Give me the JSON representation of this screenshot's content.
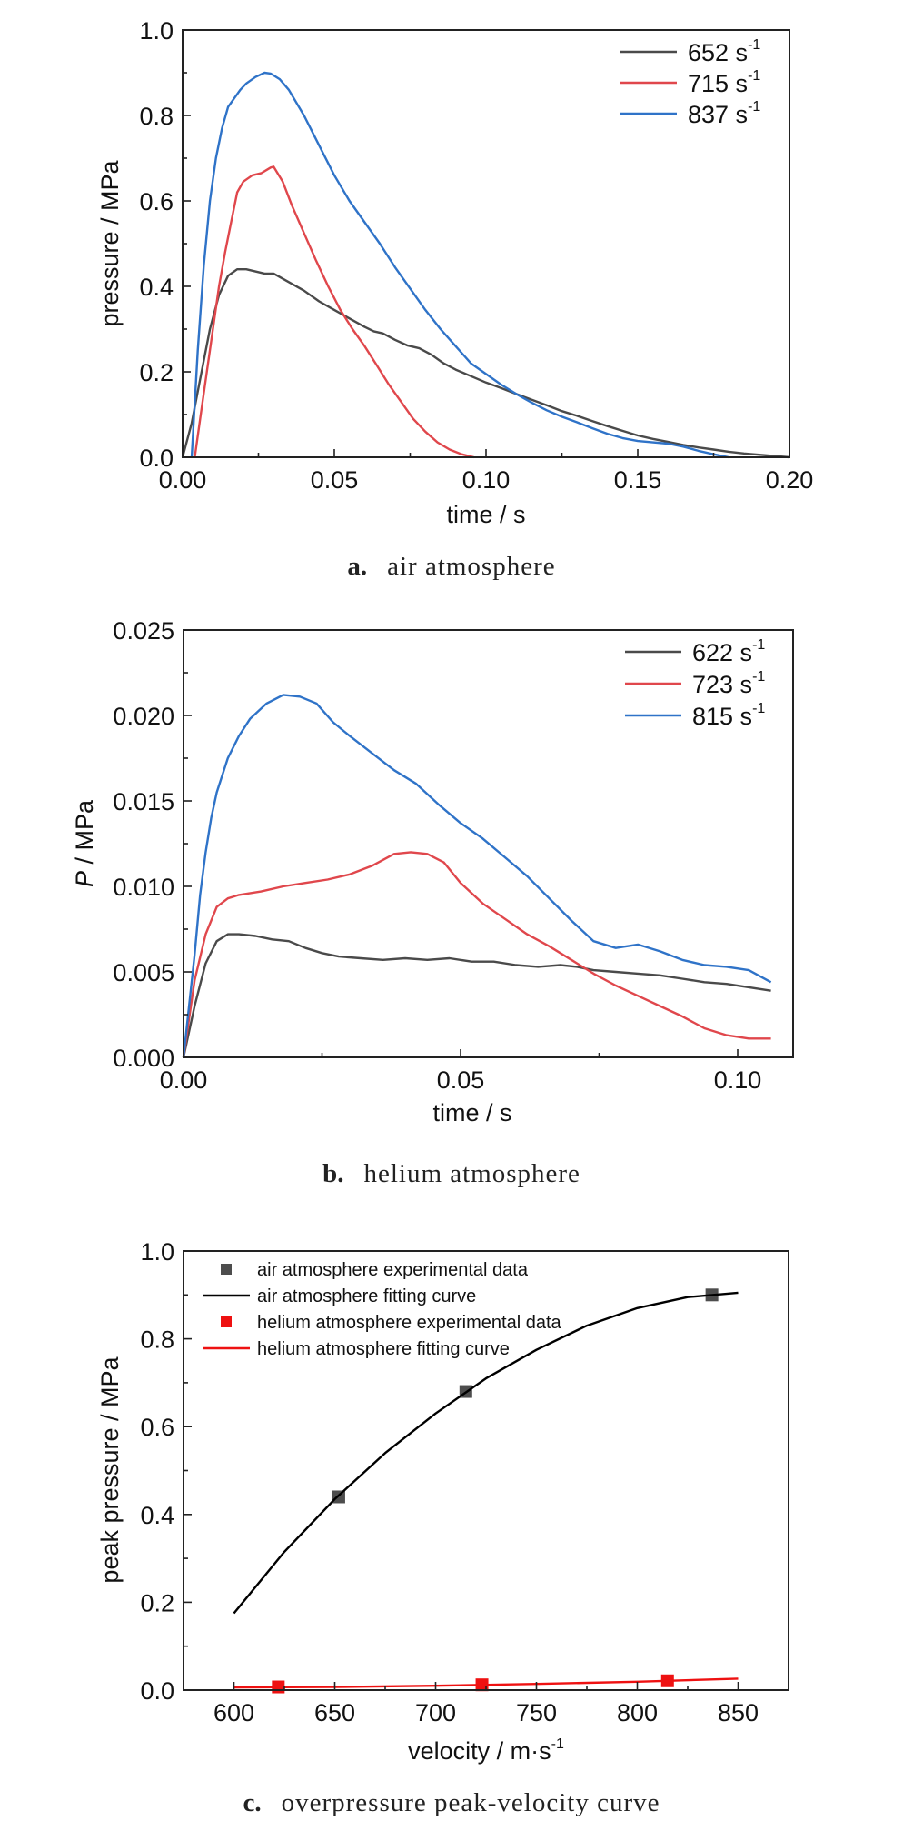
{
  "colors": {
    "gray": "#4a4a4a",
    "red": "#e0474c",
    "blue": "#2f73c8",
    "black": "#000000",
    "pure_red": "#ee1111",
    "marker_gray": "#4d4d4d"
  },
  "chart_data": [
    {
      "id": "a",
      "type": "line",
      "caption_letter": "a.",
      "caption_text": "air atmosphere",
      "xlabel": "time / s",
      "ylabel": "pressure / MPa",
      "xlim": [
        0,
        0.2
      ],
      "ylim": [
        0,
        1.0
      ],
      "xticks": [
        0.0,
        0.05,
        0.1,
        0.15,
        0.2
      ],
      "xtick_labels": [
        "0.00",
        "0.05",
        "0.10",
        "0.15",
        "0.20"
      ],
      "xminor": [
        0.025,
        0.075,
        0.125,
        0.175
      ],
      "yticks": [
        0.0,
        0.2,
        0.4,
        0.6,
        0.8,
        1.0
      ],
      "ytick_labels": [
        "0.0",
        "0.2",
        "0.4",
        "0.6",
        "0.8",
        "1.0"
      ],
      "yminor": [
        0.1,
        0.3,
        0.5,
        0.7,
        0.9
      ],
      "grid": false,
      "legend_position": "top-right",
      "series": [
        {
          "name": "652 s-1",
          "label_main": "652 s",
          "label_sup": "-1",
          "color": "#4a4a4a",
          "x": [
            0.0,
            0.003,
            0.006,
            0.009,
            0.012,
            0.015,
            0.018,
            0.021,
            0.024,
            0.027,
            0.03,
            0.035,
            0.04,
            0.045,
            0.05,
            0.055,
            0.06,
            0.063,
            0.066,
            0.07,
            0.074,
            0.078,
            0.082,
            0.086,
            0.09,
            0.095,
            0.1,
            0.105,
            0.11,
            0.115,
            0.12,
            0.125,
            0.13,
            0.135,
            0.14,
            0.145,
            0.15,
            0.155,
            0.16,
            0.165,
            0.17,
            0.175,
            0.18,
            0.185,
            0.19,
            0.195,
            0.2
          ],
          "y": [
            0.0,
            0.08,
            0.19,
            0.3,
            0.38,
            0.425,
            0.44,
            0.44,
            0.435,
            0.43,
            0.43,
            0.41,
            0.39,
            0.365,
            0.345,
            0.325,
            0.305,
            0.295,
            0.29,
            0.275,
            0.262,
            0.255,
            0.24,
            0.22,
            0.205,
            0.19,
            0.175,
            0.162,
            0.148,
            0.135,
            0.122,
            0.108,
            0.097,
            0.085,
            0.073,
            0.062,
            0.051,
            0.043,
            0.036,
            0.029,
            0.023,
            0.018,
            0.013,
            0.009,
            0.006,
            0.003,
            0.0
          ]
        },
        {
          "name": "715 s-1",
          "label_main": "715 s",
          "label_sup": "-1",
          "color": "#e0474c",
          "x": [
            0.004,
            0.006,
            0.008,
            0.01,
            0.012,
            0.014,
            0.016,
            0.018,
            0.02,
            0.023,
            0.026,
            0.029,
            0.03,
            0.033,
            0.036,
            0.04,
            0.044,
            0.048,
            0.052,
            0.056,
            0.06,
            0.064,
            0.068,
            0.072,
            0.076,
            0.08,
            0.084,
            0.088,
            0.092,
            0.096
          ],
          "y": [
            0.0,
            0.1,
            0.2,
            0.3,
            0.4,
            0.48,
            0.55,
            0.62,
            0.645,
            0.66,
            0.665,
            0.678,
            0.68,
            0.645,
            0.59,
            0.525,
            0.46,
            0.4,
            0.345,
            0.3,
            0.26,
            0.215,
            0.17,
            0.13,
            0.09,
            0.06,
            0.035,
            0.018,
            0.007,
            0.0
          ]
        },
        {
          "name": "837 s-1",
          "label_main": "837 s",
          "label_sup": "-1",
          "color": "#2f73c8",
          "x": [
            0.003,
            0.005,
            0.007,
            0.009,
            0.011,
            0.013,
            0.015,
            0.017,
            0.019,
            0.021,
            0.024,
            0.027,
            0.029,
            0.032,
            0.035,
            0.04,
            0.045,
            0.05,
            0.055,
            0.06,
            0.065,
            0.07,
            0.075,
            0.08,
            0.085,
            0.09,
            0.095,
            0.1,
            0.105,
            0.11,
            0.115,
            0.12,
            0.125,
            0.13,
            0.135,
            0.14,
            0.145,
            0.15,
            0.155,
            0.16,
            0.165,
            0.17,
            0.175,
            0.18
          ],
          "y": [
            0.0,
            0.25,
            0.45,
            0.6,
            0.7,
            0.77,
            0.82,
            0.84,
            0.86,
            0.875,
            0.89,
            0.9,
            0.898,
            0.885,
            0.86,
            0.8,
            0.73,
            0.66,
            0.6,
            0.55,
            0.5,
            0.445,
            0.395,
            0.345,
            0.3,
            0.26,
            0.22,
            0.195,
            0.17,
            0.148,
            0.128,
            0.11,
            0.095,
            0.082,
            0.068,
            0.055,
            0.045,
            0.038,
            0.035,
            0.032,
            0.025,
            0.015,
            0.007,
            0.0
          ]
        }
      ]
    },
    {
      "id": "b",
      "type": "line",
      "caption_letter": "b.",
      "caption_text": "helium atmosphere",
      "xlabel": "time / s",
      "ylabel_italic": "P",
      "ylabel_rest": " / MPa",
      "xlim": [
        0,
        0.11
      ],
      "ylim": [
        0,
        0.025
      ],
      "xticks": [
        0.0,
        0.05,
        0.1
      ],
      "xtick_labels": [
        "0.00",
        "0.05",
        "0.10"
      ],
      "xminor": [
        0.025,
        0.075
      ],
      "yticks": [
        0.0,
        0.005,
        0.01,
        0.015,
        0.02,
        0.025
      ],
      "ytick_labels": [
        "0.000",
        "0.005",
        "0.010",
        "0.015",
        "0.020",
        "0.025"
      ],
      "yminor": [
        0.0025,
        0.0075,
        0.0125,
        0.0175,
        0.0225
      ],
      "grid": false,
      "legend_position": "top-right",
      "series": [
        {
          "name": "622 s-1",
          "label_main": "622 s",
          "label_sup": "-1",
          "color": "#4a4a4a",
          "x": [
            0.0,
            0.002,
            0.004,
            0.006,
            0.008,
            0.01,
            0.013,
            0.016,
            0.019,
            0.022,
            0.025,
            0.028,
            0.032,
            0.036,
            0.04,
            0.044,
            0.048,
            0.052,
            0.056,
            0.06,
            0.064,
            0.068,
            0.071,
            0.074,
            0.078,
            0.082,
            0.086,
            0.09,
            0.094,
            0.098,
            0.102,
            0.106
          ],
          "y": [
            0.0,
            0.003,
            0.0055,
            0.0068,
            0.0072,
            0.0072,
            0.0071,
            0.0069,
            0.0068,
            0.0064,
            0.0061,
            0.0059,
            0.0058,
            0.0057,
            0.0058,
            0.0057,
            0.0058,
            0.0056,
            0.0056,
            0.0054,
            0.0053,
            0.0054,
            0.0053,
            0.0051,
            0.005,
            0.0049,
            0.0048,
            0.0046,
            0.0044,
            0.0043,
            0.0041,
            0.0039
          ]
        },
        {
          "name": "723 s-1",
          "label_main": "723 s",
          "label_sup": "-1",
          "color": "#e0474c",
          "x": [
            0.0,
            0.002,
            0.004,
            0.006,
            0.008,
            0.01,
            0.014,
            0.018,
            0.022,
            0.026,
            0.03,
            0.034,
            0.038,
            0.041,
            0.044,
            0.047,
            0.05,
            0.054,
            0.058,
            0.062,
            0.066,
            0.07,
            0.074,
            0.078,
            0.082,
            0.086,
            0.09,
            0.094,
            0.098,
            0.102,
            0.106
          ],
          "y": [
            0.0,
            0.0045,
            0.0072,
            0.0088,
            0.0093,
            0.0095,
            0.0097,
            0.01,
            0.0102,
            0.0104,
            0.0107,
            0.0112,
            0.0119,
            0.012,
            0.0119,
            0.0114,
            0.0102,
            0.009,
            0.0081,
            0.0072,
            0.0065,
            0.0057,
            0.0049,
            0.0042,
            0.0036,
            0.003,
            0.0024,
            0.0017,
            0.0013,
            0.0011,
            0.0011
          ]
        },
        {
          "name": "815 s-1",
          "label_main": "815 s",
          "label_sup": "-1",
          "color": "#2f73c8",
          "x": [
            0.0,
            0.002,
            0.003,
            0.004,
            0.005,
            0.006,
            0.008,
            0.01,
            0.012,
            0.015,
            0.018,
            0.021,
            0.024,
            0.027,
            0.03,
            0.034,
            0.038,
            0.042,
            0.046,
            0.05,
            0.054,
            0.058,
            0.062,
            0.066,
            0.07,
            0.074,
            0.078,
            0.082,
            0.086,
            0.09,
            0.094,
            0.098,
            0.102,
            0.106
          ],
          "y": [
            0.0,
            0.006,
            0.0095,
            0.012,
            0.014,
            0.0155,
            0.0175,
            0.0188,
            0.0198,
            0.0207,
            0.0212,
            0.0211,
            0.0207,
            0.0196,
            0.0188,
            0.0178,
            0.0168,
            0.016,
            0.0148,
            0.0137,
            0.0128,
            0.0117,
            0.0106,
            0.0093,
            0.008,
            0.0068,
            0.0064,
            0.0066,
            0.0062,
            0.0057,
            0.0054,
            0.0053,
            0.0051,
            0.0044
          ]
        }
      ]
    },
    {
      "id": "c",
      "type": "scatter",
      "caption_letter": "c.",
      "caption_text": "overpressure peak-velocity curve",
      "xlabel_main": "velocity / m·s",
      "xlabel_sup": "-1",
      "ylabel": "peak pressure / MPa",
      "xlim": [
        575,
        875
      ],
      "ylim": [
        0,
        1.0
      ],
      "xticks": [
        600,
        650,
        700,
        750,
        800,
        850
      ],
      "xtick_labels": [
        "600",
        "650",
        "700",
        "750",
        "800",
        "850"
      ],
      "xminor": [
        625,
        675,
        725,
        775,
        825
      ],
      "yticks": [
        0.0,
        0.2,
        0.4,
        0.6,
        0.8,
        1.0
      ],
      "ytick_labels": [
        "0.0",
        "0.2",
        "0.4",
        "0.6",
        "0.8",
        "1.0"
      ],
      "yminor": [
        0.1,
        0.3,
        0.5,
        0.7,
        0.9
      ],
      "grid": false,
      "legend_position": "top-left",
      "legend": [
        "air atmosphere experimental data",
        "air atmosphere fitting curve",
        "helium atmosphere experimental data",
        "helium atmosphere fitting curve"
      ],
      "series": [
        {
          "name": "air atmosphere experimental data",
          "kind": "markers",
          "color": "#4d4d4d",
          "x": [
            652,
            715,
            837
          ],
          "y": [
            0.44,
            0.68,
            0.9
          ]
        },
        {
          "name": "air atmosphere fitting curve",
          "kind": "line",
          "color": "#000000",
          "x": [
            600,
            625,
            650,
            675,
            700,
            725,
            750,
            775,
            800,
            825,
            850
          ],
          "y": [
            0.175,
            0.315,
            0.435,
            0.54,
            0.63,
            0.71,
            0.775,
            0.83,
            0.87,
            0.895,
            0.905
          ]
        },
        {
          "name": "helium atmosphere experimental data",
          "kind": "markers",
          "color": "#ee1111",
          "x": [
            622,
            723,
            815
          ],
          "y": [
            0.0072,
            0.012,
            0.0212
          ]
        },
        {
          "name": "helium atmosphere fitting curve",
          "kind": "line",
          "color": "#ee1111",
          "x": [
            600,
            650,
            700,
            750,
            800,
            850
          ],
          "y": [
            0.006,
            0.007,
            0.01,
            0.014,
            0.019,
            0.026
          ]
        }
      ]
    }
  ]
}
